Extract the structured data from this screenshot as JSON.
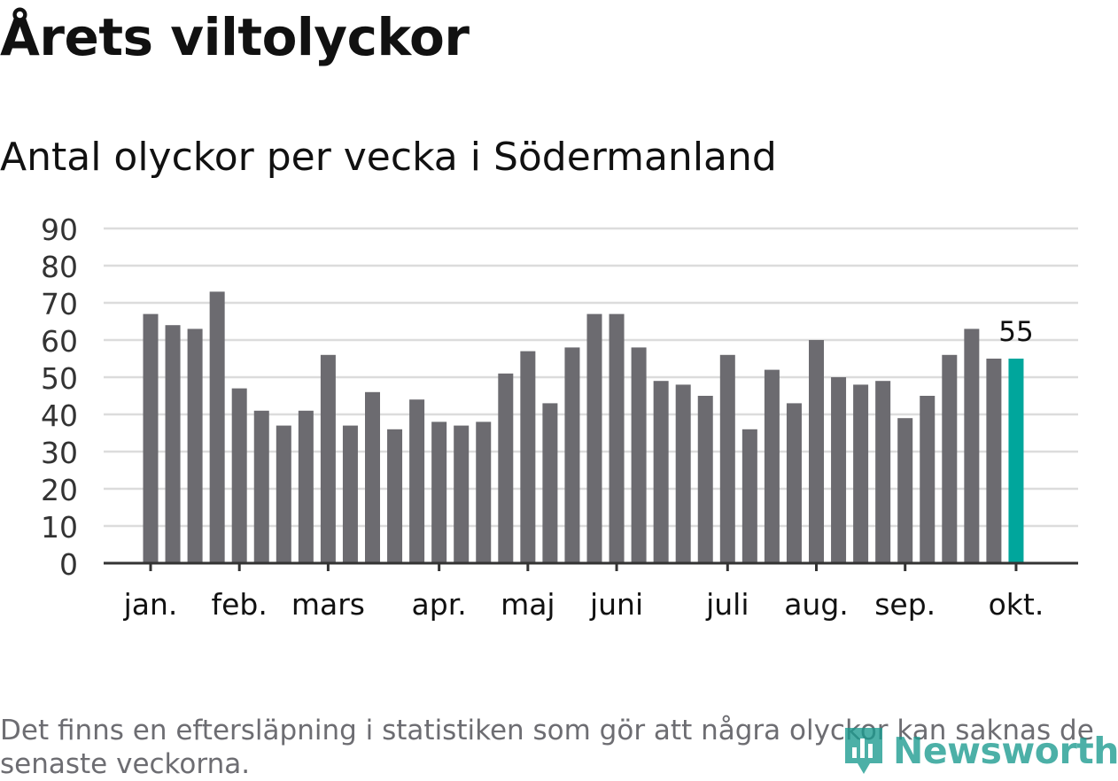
{
  "title": "Årets viltolyckor",
  "subtitle": "Antal olyckor per vecka i Södermanland",
  "note": "Det finns en eftersläpning i statistiken som gör att några olyckor kan saknas de senaste veckorna.",
  "logo_text": "Newsworthy",
  "colors": {
    "bar": "#6c6b70",
    "highlight": "#00a69c",
    "grid": "#dcdcdc",
    "axis": "#333333"
  },
  "chart_data": {
    "type": "bar",
    "title": "Antal olyckor per vecka i Södermanland",
    "xlabel": "",
    "ylabel": "",
    "ylim": [
      0,
      90
    ],
    "yticks": [
      0,
      10,
      20,
      30,
      40,
      50,
      60,
      70,
      80,
      90
    ],
    "values": [
      67,
      64,
      63,
      73,
      47,
      41,
      37,
      41,
      56,
      37,
      46,
      36,
      44,
      38,
      37,
      38,
      51,
      57,
      43,
      58,
      67,
      67,
      58,
      49,
      48,
      45,
      56,
      36,
      52,
      43,
      60,
      50,
      48,
      49,
      39,
      45,
      56,
      63,
      55,
      55
    ],
    "highlight_index": 39,
    "highlight_label": "55",
    "month_labels": [
      {
        "label": "jan.",
        "week_index": 0
      },
      {
        "label": "feb.",
        "week_index": 4
      },
      {
        "label": "mars",
        "week_index": 8
      },
      {
        "label": "apr.",
        "week_index": 13
      },
      {
        "label": "maj",
        "week_index": 17
      },
      {
        "label": "juni",
        "week_index": 21
      },
      {
        "label": "juli",
        "week_index": 26
      },
      {
        "label": "aug.",
        "week_index": 30
      },
      {
        "label": "sep.",
        "week_index": 34
      },
      {
        "label": "okt.",
        "week_index": 39
      }
    ]
  }
}
